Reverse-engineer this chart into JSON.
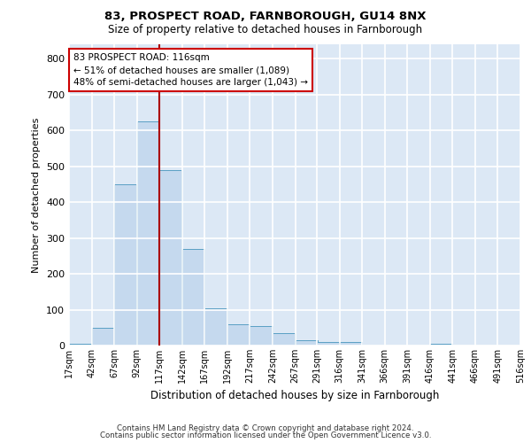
{
  "title1": "83, PROSPECT ROAD, FARNBOROUGH, GU14 8NX",
  "title2": "Size of property relative to detached houses in Farnborough",
  "xlabel": "Distribution of detached houses by size in Farnborough",
  "ylabel": "Number of detached properties",
  "footnote1": "Contains HM Land Registry data © Crown copyright and database right 2024.",
  "footnote2": "Contains public sector information licensed under the Open Government Licence v3.0.",
  "bar_color": "#c5d9ee",
  "bar_edge_color": "#5a9fc4",
  "background_color": "#dce8f5",
  "grid_color": "#ffffff",
  "vline_color": "#aa0000",
  "vline_x": 117,
  "annotation_text": "83 PROSPECT ROAD: 116sqm\n← 51% of detached houses are smaller (1,089)\n48% of semi-detached houses are larger (1,043) →",
  "bins": [
    17,
    42,
    67,
    92,
    117,
    142,
    167,
    192,
    217,
    242,
    267,
    291,
    316,
    341,
    366,
    391,
    416,
    441,
    466,
    491,
    516
  ],
  "bin_labels": [
    "17sqm",
    "42sqm",
    "67sqm",
    "92sqm",
    "117sqm",
    "142sqm",
    "167sqm",
    "192sqm",
    "217sqm",
    "242sqm",
    "267sqm",
    "291sqm",
    "316sqm",
    "341sqm",
    "366sqm",
    "391sqm",
    "416sqm",
    "441sqm",
    "466sqm",
    "491sqm",
    "516sqm"
  ],
  "counts": [
    5,
    50,
    450,
    625,
    490,
    270,
    105,
    60,
    55,
    35,
    15,
    10,
    10,
    0,
    0,
    0,
    5,
    0,
    0,
    0,
    0
  ],
  "ylim": [
    0,
    840
  ],
  "yticks": [
    0,
    100,
    200,
    300,
    400,
    500,
    600,
    700,
    800
  ]
}
